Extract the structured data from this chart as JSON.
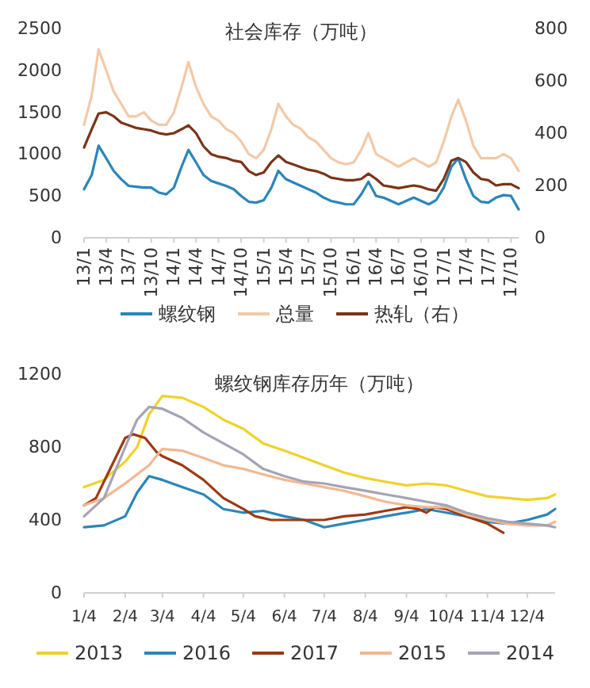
{
  "chart_data": [
    {
      "type": "line",
      "title": "社会库存（万吨）",
      "legend": "bottom",
      "x": [
        "2013-01",
        "2013-02",
        "2013-03",
        "2013-04",
        "2013-05",
        "2013-06",
        "2013-07",
        "2013-08",
        "2013-09",
        "2013-10",
        "2013-11",
        "2013-12",
        "2014-01",
        "2014-02",
        "2014-03",
        "2014-04",
        "2014-05",
        "2014-06",
        "2014-07",
        "2014-08",
        "2014-09",
        "2014-10",
        "2014-11",
        "2014-12",
        "2015-01",
        "2015-02",
        "2015-03",
        "2015-04",
        "2015-05",
        "2015-06",
        "2015-07",
        "2015-08",
        "2015-09",
        "2015-10",
        "2015-11",
        "2015-12",
        "2016-01",
        "2016-02",
        "2016-03",
        "2016-04",
        "2016-05",
        "2016-06",
        "2016-07",
        "2016-08",
        "2016-09",
        "2016-10",
        "2016-11",
        "2016-12",
        "2017-01",
        "2017-02",
        "2017-03",
        "2017-04",
        "2017-05",
        "2017-06",
        "2017-07",
        "2017-08",
        "2017-09",
        "2017-10",
        "2017-11"
      ],
      "series": [
        {
          "name": "螺纹钢",
          "color": "#2a86b8",
          "values": [
            580,
            750,
            1100,
            950,
            800,
            700,
            620,
            610,
            600,
            600,
            540,
            520,
            600,
            850,
            1050,
            900,
            750,
            680,
            650,
            620,
            580,
            500,
            430,
            420,
            450,
            600,
            800,
            700,
            660,
            620,
            580,
            540,
            480,
            440,
            420,
            400,
            400,
            520,
            670,
            500,
            480,
            440,
            400,
            440,
            480,
            440,
            400,
            450,
            600,
            850,
            950,
            700,
            500,
            430,
            420,
            480,
            510,
            500,
            340
          ]
        },
        {
          "name": "总量",
          "color": "#f2c9a8",
          "values": [
            1350,
            1700,
            2250,
            2000,
            1750,
            1600,
            1450,
            1450,
            1500,
            1400,
            1350,
            1350,
            1500,
            1800,
            2100,
            1800,
            1600,
            1450,
            1400,
            1300,
            1250,
            1150,
            1000,
            950,
            1050,
            1300,
            1600,
            1450,
            1350,
            1300,
            1200,
            1150,
            1050,
            950,
            900,
            880,
            900,
            1050,
            1250,
            1000,
            950,
            900,
            850,
            900,
            950,
            900,
            850,
            900,
            1150,
            1450,
            1650,
            1400,
            1100,
            950,
            950,
            950,
            1000,
            950,
            800
          ]
        },
        {
          "name": "热轧（右）",
          "color": "#7a3418",
          "axis": "y2",
          "values": [
            345,
            415,
            475,
            480,
            465,
            440,
            430,
            420,
            415,
            410,
            400,
            395,
            400,
            415,
            430,
            400,
            350,
            320,
            310,
            305,
            295,
            290,
            255,
            240,
            250,
            290,
            315,
            290,
            280,
            270,
            260,
            255,
            245,
            230,
            225,
            220,
            220,
            225,
            245,
            225,
            200,
            195,
            190,
            195,
            200,
            195,
            185,
            180,
            225,
            295,
            305,
            290,
            250,
            225,
            220,
            200,
            205,
            205,
            190
          ]
        }
      ],
      "xlim": [
        "2013-01",
        "2017-11"
      ],
      "xticks": [
        {
          "value": "2013-01",
          "label": "13/1"
        },
        {
          "value": "2013-04",
          "label": "13/4"
        },
        {
          "value": "2013-07",
          "label": "13/7"
        },
        {
          "value": "2013-10",
          "label": "13/10"
        },
        {
          "value": "2014-01",
          "label": "14/1"
        },
        {
          "value": "2014-04",
          "label": "14/4"
        },
        {
          "value": "2014-07",
          "label": "14/7"
        },
        {
          "value": "2014-10",
          "label": "14/10"
        },
        {
          "value": "2015-01",
          "label": "15/1"
        },
        {
          "value": "2015-04",
          "label": "15/4"
        },
        {
          "value": "2015-07",
          "label": "15/7"
        },
        {
          "value": "2015-10",
          "label": "15/10"
        },
        {
          "value": "2016-01",
          "label": "16/1"
        },
        {
          "value": "2016-04",
          "label": "16/4"
        },
        {
          "value": "2016-07",
          "label": "16/7"
        },
        {
          "value": "2016-10",
          "label": "16/10"
        },
        {
          "value": "2017-01",
          "label": "17/1"
        },
        {
          "value": "2017-04",
          "label": "17/4"
        },
        {
          "value": "2017-07",
          "label": "17/7"
        },
        {
          "value": "2017-10",
          "label": "17/10"
        }
      ],
      "ylim": [
        0,
        2500
      ],
      "yticks": [
        0,
        500,
        1000,
        1500,
        2000,
        2500
      ],
      "y2lim": [
        0,
        800
      ],
      "y2ticks": [
        0,
        200,
        400,
        600,
        800
      ]
    },
    {
      "type": "line",
      "title": "螺纹钢库存历年（万吨）",
      "legend": "bottom",
      "x": [
        "--01-04",
        "--01-19",
        "--02-04",
        "--02-13",
        "--02-22",
        "--03-04",
        "--03-19",
        "--04-04",
        "--04-19",
        "--05-04",
        "--05-19",
        "--06-04",
        "--06-19",
        "--07-04",
        "--07-19",
        "--08-04",
        "--08-19",
        "--09-04",
        "--09-19",
        "--10-04",
        "--10-19",
        "--11-04",
        "--11-19",
        "--12-04",
        "--12-19",
        "--12-25"
      ],
      "series": [
        {
          "name": "2013",
          "color": "#f0d22a",
          "values": [
            580,
            620,
            720,
            800,
            980,
            1080,
            1070,
            1020,
            950,
            900,
            820,
            780,
            740,
            700,
            660,
            630,
            610,
            590,
            600,
            590,
            560,
            530,
            520,
            510,
            520,
            540
          ]
        },
        {
          "name": "2016",
          "color": "#2a86b8",
          "values": [
            360,
            370,
            420,
            550,
            640,
            620,
            580,
            540,
            460,
            440,
            450,
            420,
            400,
            360,
            380,
            400,
            420,
            440,
            460,
            440,
            420,
            390,
            380,
            400,
            430,
            460
          ]
        },
        {
          "name": "2017",
          "color": "#9c3a12",
          "x": [
            "--01-04",
            "--01-13",
            "--01-25",
            "--02-04",
            "--02-10",
            "--02-19",
            "--02-28",
            "--03-04",
            "--03-19",
            "--04-04",
            "--04-19",
            "--05-04",
            "--05-13",
            "--05-25",
            "--06-04",
            "--06-19",
            "--07-04",
            "--07-19",
            "--08-04",
            "--08-19",
            "--09-04",
            "--09-13",
            "--09-19",
            "--09-25",
            "--10-04",
            "--10-19",
            "--11-04",
            "--11-16"
          ],
          "values": [
            480,
            520,
            700,
            850,
            870,
            850,
            770,
            750,
            700,
            620,
            520,
            460,
            420,
            400,
            400,
            400,
            400,
            420,
            430,
            450,
            470,
            460,
            440,
            470,
            460,
            420,
            380,
            330
          ]
        },
        {
          "name": "2015",
          "color": "#f2b890",
          "values": [
            480,
            520,
            600,
            650,
            700,
            790,
            780,
            740,
            700,
            680,
            650,
            620,
            600,
            580,
            560,
            530,
            500,
            480,
            470,
            470,
            430,
            400,
            380,
            370,
            370,
            390
          ]
        },
        {
          "name": "2014",
          "color": "#a4a4b4",
          "values": [
            420,
            520,
            800,
            950,
            1020,
            1010,
            960,
            880,
            820,
            760,
            680,
            640,
            610,
            600,
            580,
            560,
            540,
            520,
            500,
            480,
            440,
            410,
            390,
            380,
            370,
            360
          ]
        }
      ],
      "xlim": [
        "--01-04",
        "--12-25"
      ],
      "xticks": [
        {
          "value": "--01-04",
          "label": "1/4"
        },
        {
          "value": "--02-04",
          "label": "2/4"
        },
        {
          "value": "--03-04",
          "label": "3/4"
        },
        {
          "value": "--04-04",
          "label": "4/4"
        },
        {
          "value": "--05-04",
          "label": "5/4"
        },
        {
          "value": "--06-04",
          "label": "6/4"
        },
        {
          "value": "--07-04",
          "label": "7/4"
        },
        {
          "value": "--08-04",
          "label": "8/4"
        },
        {
          "value": "--09-04",
          "label": "9/4"
        },
        {
          "value": "--10-04",
          "label": "10/4"
        },
        {
          "value": "--11-04",
          "label": "11/4"
        },
        {
          "value": "--12-04",
          "label": "12/4"
        }
      ],
      "ylim": [
        0,
        1200
      ],
      "yticks": [
        0,
        400,
        800,
        1200
      ]
    }
  ]
}
